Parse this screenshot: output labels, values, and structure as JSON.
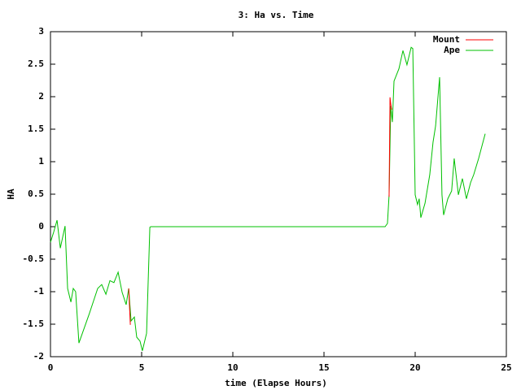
{
  "chart_data": {
    "type": "line",
    "title": "3: Ha vs. Time",
    "x_label": "time (Elapse Hours)",
    "y_label": "HA",
    "xlim": [
      0,
      25
    ],
    "ylim": [
      -2,
      3
    ],
    "xticks": [
      0,
      5,
      10,
      15,
      20,
      25
    ],
    "yticks": [
      -2,
      -1.5,
      -1,
      -0.5,
      0,
      0.5,
      1,
      1.5,
      2,
      2.5,
      3
    ],
    "legend": "top-right",
    "series": [
      {
        "name": "Mount",
        "color": "#ff0000",
        "x": [
          4.29,
          4.38,
          null,
          18.57,
          18.62,
          18.66,
          18.71
        ],
        "values": [
          -0.95,
          -1.51,
          null,
          0.46,
          1.99,
          1.89,
          1.8
        ]
      },
      {
        "name": "Ape",
        "color": "#00c000",
        "x": [
          0,
          0.18,
          0.36,
          0.54,
          0.8,
          0.94,
          1.12,
          1.25,
          1.38,
          1.56,
          2.14,
          2.59,
          2.81,
          3.04,
          3.26,
          3.48,
          3.71,
          3.93,
          4.15,
          4.29,
          4.42,
          4.6,
          4.73,
          4.91,
          5.04,
          5.27,
          5.45,
          5.5,
          18.35,
          18.48,
          18.57,
          18.66,
          18.75,
          18.84,
          19.11,
          19.33,
          19.55,
          19.78,
          19.87,
          20,
          20.13,
          20.22,
          20.31,
          20.54,
          20.8,
          20.98,
          21.12,
          21.34,
          21.47,
          21.56,
          21.79,
          22,
          22.14,
          22.37,
          22.59,
          22.81,
          23.04,
          23.21,
          23.48,
          23.84
        ],
        "values": [
          -0.24,
          -0.08,
          0.1,
          -0.33,
          0.01,
          -0.95,
          -1.16,
          -0.95,
          -1,
          -1.79,
          -1.33,
          -0.95,
          -0.89,
          -1.04,
          -0.83,
          -0.86,
          -0.7,
          -1.01,
          -1.2,
          -0.95,
          -1.45,
          -1.39,
          -1.7,
          -1.76,
          -1.91,
          -1.64,
          -0.01,
          0,
          0,
          0.05,
          0.49,
          1.86,
          1.61,
          2.24,
          2.43,
          2.71,
          2.49,
          2.76,
          2.74,
          0.49,
          0.34,
          0.43,
          0.14,
          0.36,
          0.8,
          1.3,
          1.55,
          2.3,
          0.49,
          0.18,
          0.43,
          0.55,
          1.05,
          0.49,
          0.74,
          0.43,
          0.68,
          0.8,
          1.05,
          1.43
        ]
      }
    ]
  }
}
